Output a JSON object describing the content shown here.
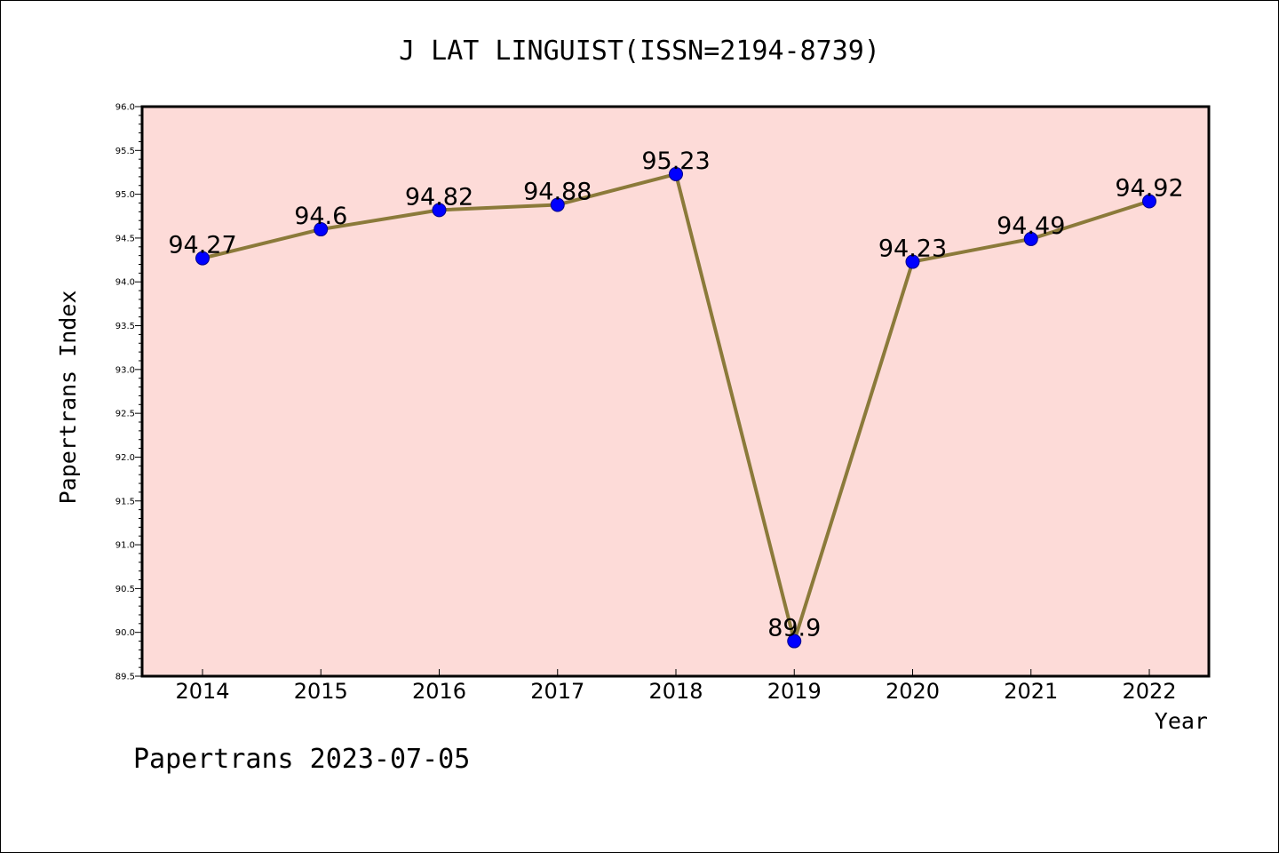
{
  "chart_data": {
    "type": "line",
    "title": "J LAT LINGUIST(ISSN=2194-8739)",
    "xlabel": "Year",
    "ylabel": "Papertrans Index",
    "categories": [
      "2014",
      "2015",
      "2016",
      "2017",
      "2018",
      "2019",
      "2020",
      "2021",
      "2022"
    ],
    "series": [
      {
        "values": [
          94.27,
          94.6,
          94.82,
          94.88,
          95.23,
          89.9,
          94.23,
          94.49,
          94.92
        ],
        "labels": [
          "94.27",
          "94.6",
          "94.82",
          "94.88",
          "95.23",
          "89.9",
          "94.23",
          "94.49",
          "94.92"
        ],
        "line_color": "#8b7a3a",
        "marker_color": "#0000ff"
      }
    ],
    "ylim": [
      89.5,
      96.0
    ],
    "yticks": [
      "89.5",
      "90.0",
      "90.5",
      "91.0",
      "91.5",
      "92.0",
      "92.5",
      "93.0",
      "93.5",
      "94.0",
      "94.5",
      "95.0",
      "95.5",
      "96.0"
    ],
    "grid": false,
    "legend": "none",
    "plot_background": "#fddbd8"
  },
  "footer": "Papertrans 2023-07-05"
}
